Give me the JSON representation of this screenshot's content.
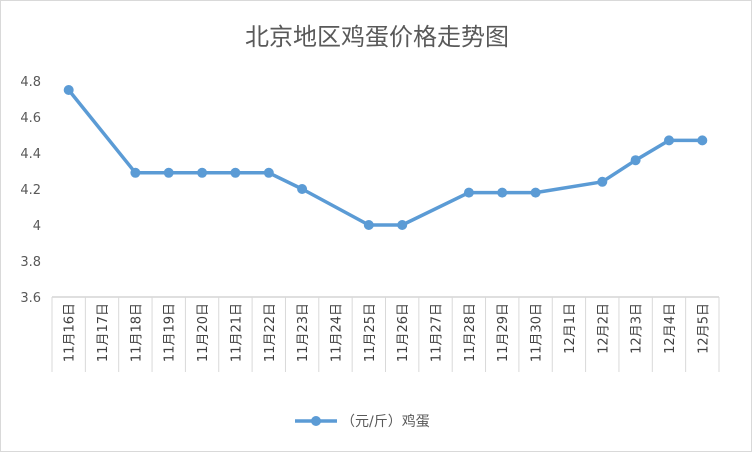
{
  "chart_data": {
    "type": "line",
    "title": "北京地区鸡蛋价格走势图",
    "categories": [
      "11月16日",
      "11月17日",
      "11月18日",
      "11月19日",
      "11月20日",
      "11月21日",
      "11月22日",
      "11月23日",
      "11月24日",
      "11月25日",
      "11月26日",
      "11月27日",
      "11月28日",
      "11月29日",
      "11月30日",
      "12月1日",
      "12月2日",
      "12月3日",
      "12月4日",
      "12月5日"
    ],
    "series": [
      {
        "name": "（元/斤）鸡蛋",
        "color": "#5b9bd5",
        "values": [
          4.75,
          null,
          4.29,
          4.29,
          4.29,
          4.29,
          4.29,
          4.2,
          null,
          4.0,
          4.0,
          null,
          4.18,
          4.18,
          4.18,
          null,
          4.24,
          4.36,
          4.47,
          4.47
        ]
      }
    ],
    "ylim": [
      3.6,
      4.8
    ],
    "yticks": [
      "3.6",
      "3.8",
      "4",
      "4.2",
      "4.4",
      "4.6",
      "4.8"
    ],
    "xlabel": "",
    "ylabel": "",
    "grid": false,
    "legend": "bottom"
  }
}
